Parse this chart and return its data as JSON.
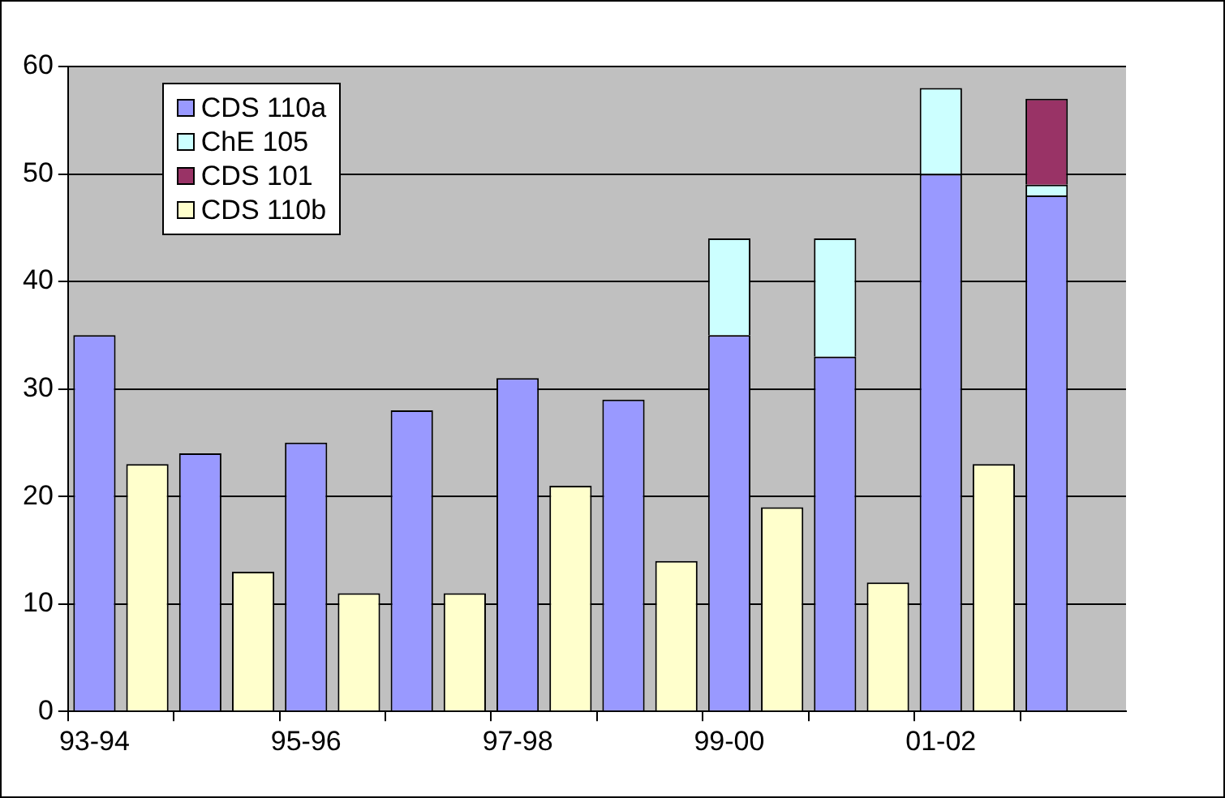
{
  "chart_data": {
    "type": "bar",
    "categories": [
      "93-94",
      null,
      null,
      null,
      "95-96",
      null,
      null,
      null,
      "97-98",
      null,
      null,
      null,
      "99-00",
      null,
      null,
      null,
      "01-02",
      null,
      null,
      null
    ],
    "series": [
      {
        "name": "CDS 110a",
        "color": "#9999ff",
        "values": [
          35,
          null,
          24,
          null,
          25,
          null,
          28,
          null,
          31,
          null,
          29,
          null,
          35,
          null,
          33,
          null,
          50,
          null,
          48,
          null
        ]
      },
      {
        "name": "ChE 105",
        "color": "#ccffff",
        "values": [
          null,
          null,
          null,
          null,
          null,
          null,
          null,
          null,
          null,
          null,
          null,
          null,
          9,
          null,
          11,
          null,
          8,
          null,
          1,
          null
        ]
      },
      {
        "name": "CDS 101",
        "color": "#993366",
        "values": [
          null,
          null,
          null,
          null,
          null,
          null,
          null,
          null,
          null,
          null,
          null,
          null,
          null,
          null,
          null,
          null,
          null,
          null,
          8,
          null
        ]
      },
      {
        "name": "CDS 110b",
        "color": "#ffffcc",
        "values": [
          null,
          23,
          null,
          13,
          null,
          11,
          null,
          11,
          null,
          21,
          null,
          14,
          null,
          19,
          null,
          12,
          null,
          23,
          null,
          null
        ]
      }
    ],
    "stacked": true,
    "ylim": [
      0,
      60
    ],
    "yticks": [
      0,
      10,
      20,
      30,
      40,
      50,
      60
    ],
    "grid": "y",
    "legend": "top left"
  }
}
